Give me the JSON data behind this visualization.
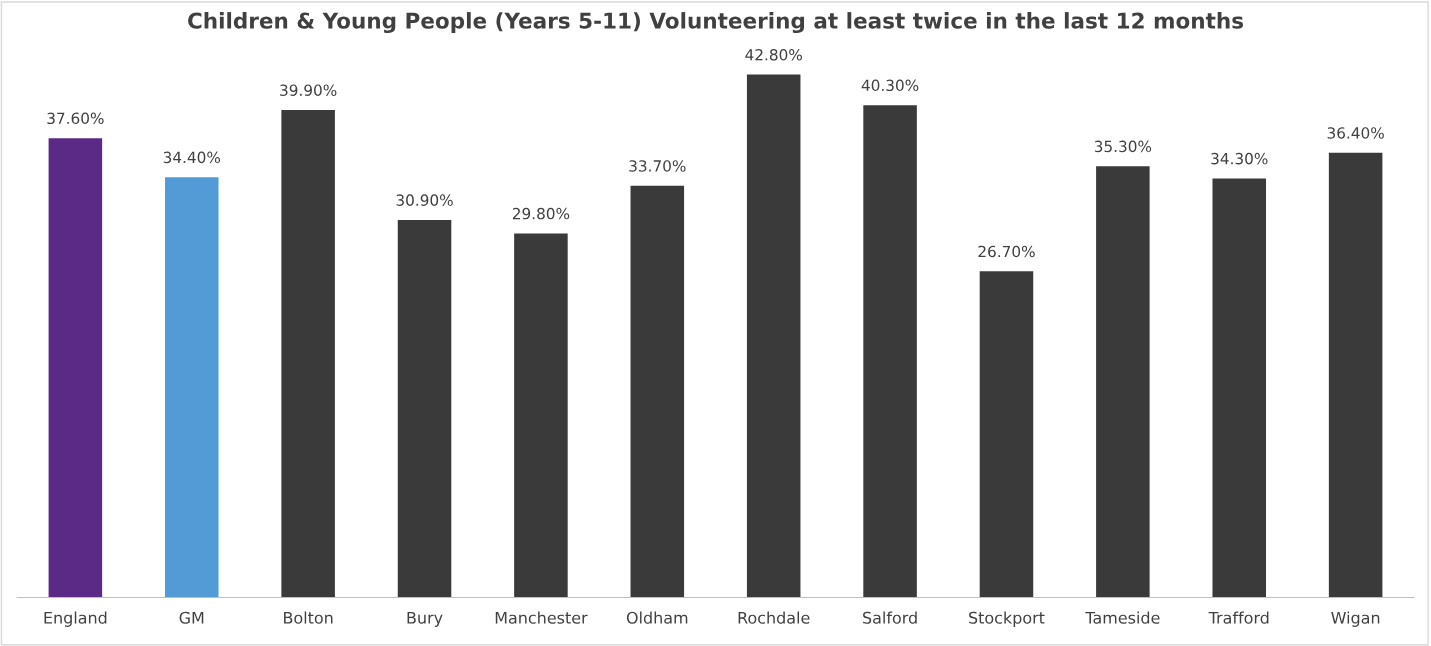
{
  "chart_data": {
    "type": "bar",
    "title": "Children & Young People (Years 5-11) Volunteering at least twice in the last 12 months",
    "categories": [
      "England",
      "GM",
      "Bolton",
      "Bury",
      "Manchester",
      "Oldham",
      "Rochdale",
      "Salford",
      "Stockport",
      "Tameside",
      "Trafford",
      "Wigan"
    ],
    "values": [
      37.6,
      34.4,
      39.9,
      30.9,
      29.8,
      33.7,
      42.8,
      40.3,
      26.7,
      35.3,
      34.3,
      36.4
    ],
    "value_labels": [
      "37.60%",
      "34.40%",
      "39.90%",
      "30.90%",
      "29.80%",
      "33.70%",
      "42.80%",
      "40.30%",
      "26.70%",
      "35.30%",
      "34.30%",
      "36.40%"
    ],
    "colors": [
      "#5b2a86",
      "#529bd6",
      "#3a3a3a",
      "#3a3a3a",
      "#3a3a3a",
      "#3a3a3a",
      "#3a3a3a",
      "#3a3a3a",
      "#3a3a3a",
      "#3a3a3a",
      "#3a3a3a",
      "#3a3a3a"
    ],
    "grid": false,
    "legend": false
  }
}
